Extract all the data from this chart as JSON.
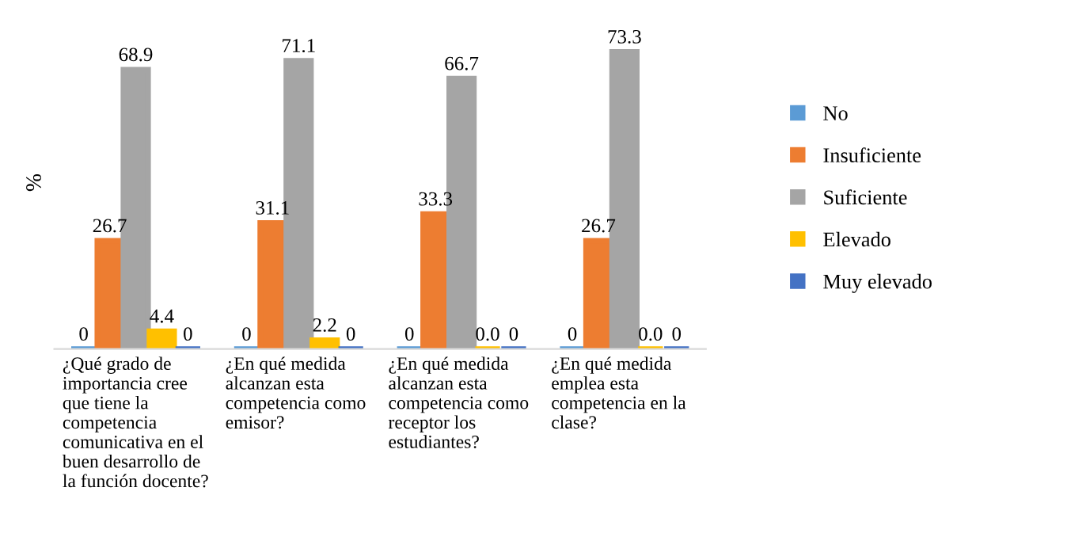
{
  "chart_data": {
    "type": "bar",
    "ylabel": "%",
    "categories": [
      "¿Qué grado de importancia cree que tiene la competencia comunicativa en el buen desarrollo de la función docente?",
      "¿En qué medida alcanzan esta competencia como emisor?",
      "¿En qué medida alcanzan esta competencia como receptor los estudiantes?",
      "¿En qué medida emplea esta competencia en la clase?"
    ],
    "series": [
      {
        "name": "No",
        "color": "#5b9bd5",
        "values": [
          0,
          0,
          0,
          0
        ],
        "value_labels": [
          "0",
          "0",
          "0",
          "0"
        ]
      },
      {
        "name": "Insuficiente",
        "color": "#ed7d31",
        "values": [
          26.7,
          31.1,
          33.3,
          26.7
        ],
        "value_labels": [
          "26.7",
          "31.1",
          "33.3",
          "26.7"
        ]
      },
      {
        "name": "Suficiente",
        "color": "#a5a5a5",
        "values": [
          68.9,
          71.1,
          66.7,
          73.3
        ],
        "value_labels": [
          "68.9",
          "71.1",
          "66.7",
          "73.3"
        ]
      },
      {
        "name": "Elevado",
        "color": "#ffc000",
        "values": [
          4.4,
          2.2,
          0,
          0
        ],
        "value_labels": [
          "4.4",
          "2.2",
          "0.0",
          "0.0"
        ]
      },
      {
        "name": "Muy elevado",
        "color": "#4472c4",
        "values": [
          0,
          0,
          0,
          0
        ],
        "value_labels": [
          "0",
          "0",
          "0",
          "0"
        ]
      }
    ],
    "tick_labels": "x",
    "legend": "right",
    "grid": false
  }
}
